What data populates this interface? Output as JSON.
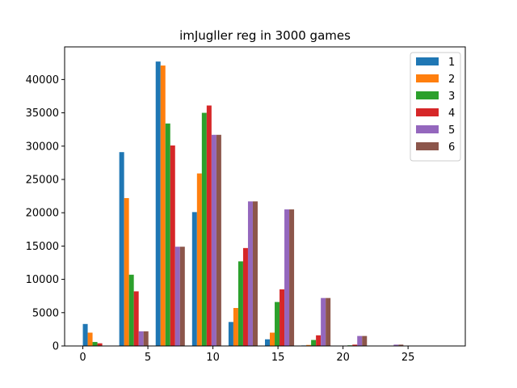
{
  "chart_data": {
    "type": "bar",
    "title": "imJugller reg in 3000 games",
    "xlabel": "",
    "ylabel": "",
    "xlim": [
      -1.4,
      29.4
    ],
    "ylim": [
      0,
      44900
    ],
    "xticks": [
      0,
      5,
      10,
      15,
      20,
      25
    ],
    "yticks": [
      0,
      5000,
      10000,
      15000,
      20000,
      25000,
      30000,
      35000,
      40000
    ],
    "grid": false,
    "legend_position": "top-right",
    "bin_width": 2.8,
    "bin_starts": [
      0,
      2.8,
      5.6,
      8.4,
      11.2,
      14.0,
      16.8,
      19.6,
      22.4,
      25.2
    ],
    "series": [
      {
        "name": "1",
        "color": "#1f77b4",
        "values": [
          3300,
          29100,
          42700,
          20100,
          3600,
          1000,
          80,
          20,
          0,
          0
        ]
      },
      {
        "name": "2",
        "color": "#ff7f0e",
        "values": [
          2000,
          22200,
          42100,
          25900,
          5700,
          2000,
          150,
          30,
          0,
          0
        ]
      },
      {
        "name": "3",
        "color": "#2ca02c",
        "values": [
          600,
          10700,
          33400,
          35000,
          12700,
          6600,
          900,
          100,
          20,
          0
        ]
      },
      {
        "name": "4",
        "color": "#d62728",
        "values": [
          400,
          8200,
          30100,
          36100,
          14700,
          8500,
          1600,
          200,
          30,
          0
        ]
      },
      {
        "name": "5",
        "color": "#9467bd",
        "values": [
          0,
          2200,
          14900,
          31700,
          21700,
          20500,
          7200,
          1500,
          200,
          0
        ]
      },
      {
        "name": "6",
        "color": "#8c564b",
        "values": [
          0,
          2200,
          14900,
          31700,
          21700,
          20500,
          7200,
          1500,
          200,
          0
        ]
      }
    ]
  }
}
